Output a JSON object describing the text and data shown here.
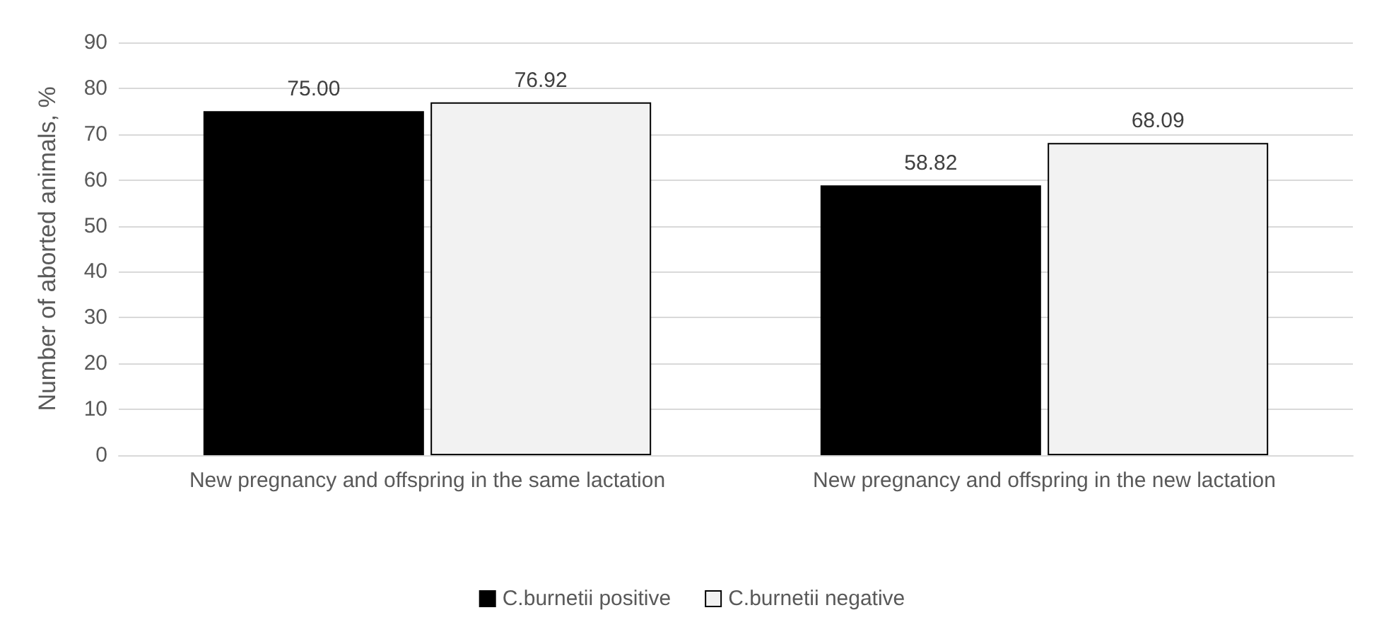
{
  "chart_data": {
    "type": "bar",
    "ylabel": "Number of aborted animals, %",
    "categories": [
      "New pregnancy and offspring in the same lactation",
      "New pregnancy and offspring in the new lactation"
    ],
    "series": [
      {
        "name": "C.burnetii positive",
        "color": "#000000",
        "values": [
          75.0,
          58.82
        ],
        "value_labels": [
          "75.00",
          "58.82"
        ]
      },
      {
        "name": "C.burnetii negative",
        "color": "#f2f2f2",
        "values": [
          76.92,
          68.09
        ],
        "value_labels": [
          "76.92",
          "68.09"
        ]
      }
    ],
    "ylim": [
      0,
      90
    ],
    "yticks": [
      0,
      10,
      20,
      30,
      40,
      50,
      60,
      70,
      80,
      90
    ],
    "grid": "y",
    "legend": "bottom"
  }
}
